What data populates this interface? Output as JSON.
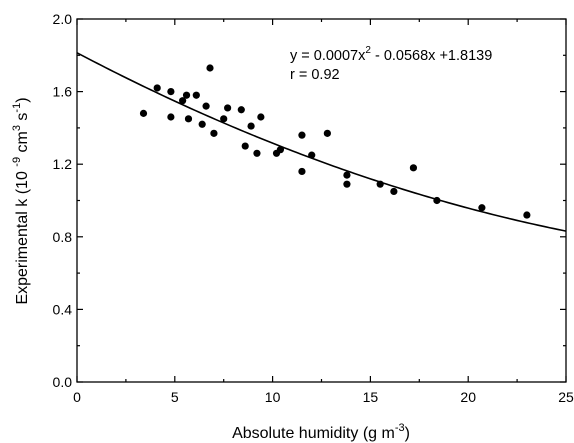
{
  "chart_data": {
    "type": "scatter",
    "xlabel": {
      "text": "Absolute humidity (g m",
      "sup": "-3",
      "tail": ")"
    },
    "ylabel": {
      "parts": [
        {
          "t": "Experimental k (10 "
        },
        {
          "t": "-9",
          "sup": true
        },
        {
          "t": " cm"
        },
        {
          "t": "3",
          "sup": true
        },
        {
          "t": " s"
        },
        {
          "t": "-1",
          "sup": true
        },
        {
          "t": ")"
        }
      ]
    },
    "xlim": [
      0,
      25
    ],
    "ylim": [
      0.0,
      2.0
    ],
    "xticks": [
      0,
      5,
      10,
      15,
      20,
      25
    ],
    "xtick_labels": [
      "0",
      "5",
      "10",
      "15",
      "20",
      "25"
    ],
    "yticks": [
      0.0,
      0.4,
      0.8,
      1.2,
      1.6,
      2.0
    ],
    "ytick_labels": [
      "0.0",
      "0.4",
      "0.8",
      "1.2",
      "1.6",
      "2.0"
    ],
    "grid": false,
    "annotations": {
      "equation": {
        "a": "y = 0.0007x",
        "sup": "2",
        "b": " - 0.0568x +1.8139"
      },
      "r": "r = 0.92"
    },
    "fit": {
      "a": 0.0007,
      "b": -0.0568,
      "c": 1.8139
    },
    "points": [
      {
        "x": 3.4,
        "y": 1.48
      },
      {
        "x": 4.1,
        "y": 1.62
      },
      {
        "x": 4.8,
        "y": 1.6
      },
      {
        "x": 4.8,
        "y": 1.46
      },
      {
        "x": 5.4,
        "y": 1.55
      },
      {
        "x": 5.6,
        "y": 1.58
      },
      {
        "x": 5.7,
        "y": 1.45
      },
      {
        "x": 6.1,
        "y": 1.58
      },
      {
        "x": 6.4,
        "y": 1.42
      },
      {
        "x": 6.6,
        "y": 1.52
      },
      {
        "x": 6.8,
        "y": 1.73
      },
      {
        "x": 7.0,
        "y": 1.37
      },
      {
        "x": 7.5,
        "y": 1.45
      },
      {
        "x": 7.7,
        "y": 1.51
      },
      {
        "x": 8.4,
        "y": 1.5
      },
      {
        "x": 8.6,
        "y": 1.3
      },
      {
        "x": 8.9,
        "y": 1.41
      },
      {
        "x": 9.2,
        "y": 1.26
      },
      {
        "x": 9.4,
        "y": 1.46
      },
      {
        "x": 10.2,
        "y": 1.26
      },
      {
        "x": 10.4,
        "y": 1.28
      },
      {
        "x": 11.5,
        "y": 1.16
      },
      {
        "x": 11.5,
        "y": 1.36
      },
      {
        "x": 12.0,
        "y": 1.25
      },
      {
        "x": 12.8,
        "y": 1.37
      },
      {
        "x": 13.8,
        "y": 1.14
      },
      {
        "x": 13.8,
        "y": 1.09
      },
      {
        "x": 15.5,
        "y": 1.09
      },
      {
        "x": 16.2,
        "y": 1.05
      },
      {
        "x": 17.2,
        "y": 1.18
      },
      {
        "x": 18.4,
        "y": 1.0
      },
      {
        "x": 20.7,
        "y": 0.96
      },
      {
        "x": 23.0,
        "y": 0.92
      }
    ]
  }
}
